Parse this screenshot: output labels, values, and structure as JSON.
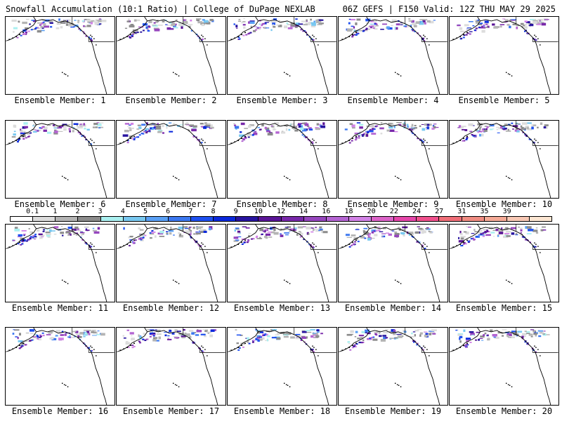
{
  "header": {
    "title_left": "Snowfall Accumulation (10:1 Ratio) | College of DuPage NEXLAB",
    "title_right": "06Z GEFS | F150 Valid: 12Z THU MAY 29 2025"
  },
  "panels": [
    {
      "label": "Ensemble Member: 1"
    },
    {
      "label": "Ensemble Member: 2"
    },
    {
      "label": "Ensemble Member: 3"
    },
    {
      "label": "Ensemble Member: 4"
    },
    {
      "label": "Ensemble Member: 5"
    },
    {
      "label": "Ensemble Member: 6"
    },
    {
      "label": "Ensemble Member: 7"
    },
    {
      "label": "Ensemble Member: 8"
    },
    {
      "label": "Ensemble Member: 9"
    },
    {
      "label": "Ensemble Member: 10"
    },
    {
      "label": "Ensemble Member: 11"
    },
    {
      "label": "Ensemble Member: 12"
    },
    {
      "label": "Ensemble Member: 13"
    },
    {
      "label": "Ensemble Member: 14"
    },
    {
      "label": "Ensemble Member: 15"
    },
    {
      "label": "Ensemble Member: 16"
    },
    {
      "label": "Ensemble Member: 17"
    },
    {
      "label": "Ensemble Member: 18"
    },
    {
      "label": "Ensemble Member: 19"
    },
    {
      "label": "Ensemble Member: 20"
    }
  ],
  "legend": {
    "tick_labels": [
      "0.1",
      "1",
      "2",
      "3",
      "4",
      "5",
      "6",
      "7",
      "8",
      "9",
      "10",
      "12",
      "14",
      "16",
      "18",
      "20",
      "22",
      "24",
      "27",
      "31",
      "35",
      "39"
    ],
    "colors": [
      "#ffffff",
      "#dcdcdc",
      "#b4b4b4",
      "#8c8c8c",
      "#aaf0f0",
      "#78c8f0",
      "#5aa0f5",
      "#3c78f0",
      "#1e50f0",
      "#0a28dc",
      "#2814a0",
      "#5a1496",
      "#7828aa",
      "#9646be",
      "#b464d2",
      "#d282e6",
      "#dc64c8",
      "#e646aa",
      "#f0508c",
      "#f06e78",
      "#f08c82",
      "#f5aa96",
      "#f8c8b4",
      "#fce6d2"
    ]
  }
}
